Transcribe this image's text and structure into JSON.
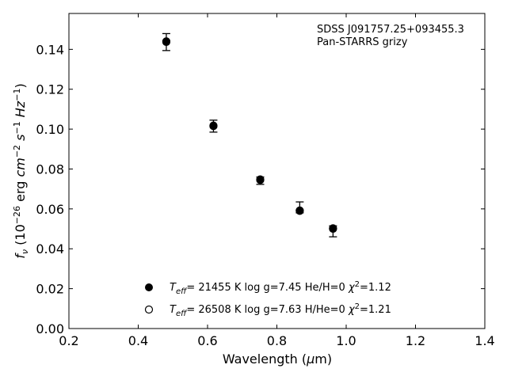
{
  "chart_data": {
    "type": "scatter",
    "xlabel": "Wavelength (μm)",
    "ylabel": "fν (10⁻²⁶ erg cm⁻² s⁻¹ Hz⁻¹)",
    "xlim": [
      0.2,
      1.4
    ],
    "ylim": [
      0.0,
      0.158
    ],
    "x_ticks": [
      "0.2",
      "0.4",
      "0.6",
      "0.8",
      "1.0",
      "1.2",
      "1.4"
    ],
    "y_ticks": [
      "0.00",
      "0.02",
      "0.04",
      "0.06",
      "0.08",
      "0.10",
      "0.12",
      "0.14"
    ],
    "grid": false,
    "annotation": [
      "SDSS J091757.25+093455.3",
      "Pan-STARRS grizy"
    ],
    "observed": {
      "x": [
        0.481,
        0.617,
        0.752,
        0.866,
        0.962
      ],
      "y": [
        0.1437,
        0.1015,
        0.0745,
        0.0595,
        0.05
      ],
      "yerr_low": [
        0.0043,
        0.003,
        0.0022,
        0.0015,
        0.004
      ],
      "yerr_high": [
        0.0042,
        0.003,
        0.0015,
        0.004,
        0.0015
      ]
    },
    "series": [
      {
        "marker": "filled",
        "teff": "21455 K",
        "logg": "log g=7.45",
        "comp": "He/H=0",
        "chi2": "=1.12",
        "x": [
          0.481,
          0.617,
          0.752,
          0.866,
          0.962
        ],
        "y": [
          0.1437,
          0.1015,
          0.0745,
          0.059,
          0.05
        ]
      },
      {
        "marker": "open",
        "teff": "26508 K",
        "logg": "log g=7.63",
        "comp": "H/He=0",
        "chi2": "=1.21",
        "x": [
          0.481,
          0.617,
          0.752,
          0.866,
          0.962
        ],
        "y": [
          0.144,
          0.1018,
          0.0748,
          0.0592,
          0.0503
        ]
      }
    ]
  }
}
